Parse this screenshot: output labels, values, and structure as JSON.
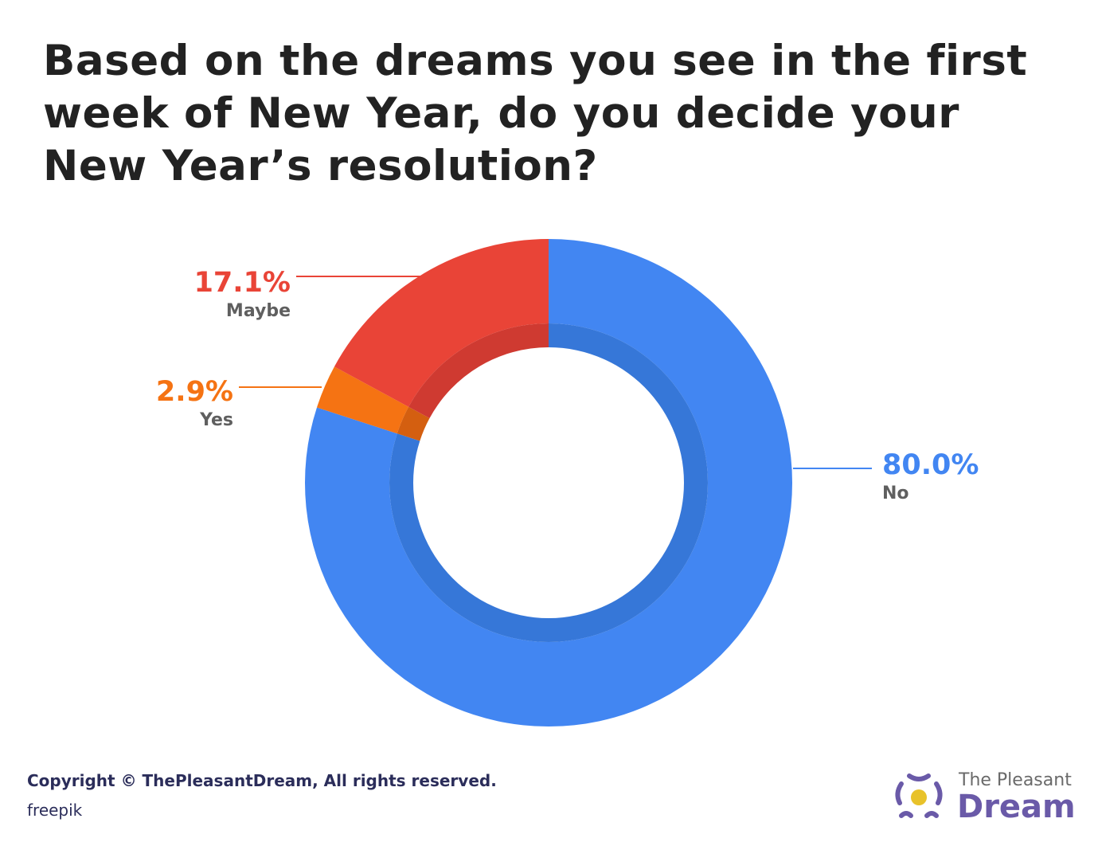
{
  "chart_data": {
    "type": "pie",
    "variant": "donut",
    "title": "Based on the dreams you see in the first week of New Year, do you decide your New Year’s resolution?",
    "categories": [
      "No",
      "Yes",
      "Maybe"
    ],
    "values": [
      80.0,
      2.9,
      17.1
    ],
    "labels": [
      "80.0%",
      "2.9%",
      "17.1%"
    ],
    "colors": [
      "#4286f2",
      "#f57313",
      "#e94437"
    ],
    "inner_colors": [
      "#3677d8",
      "#d45f10",
      "#cf3a31"
    ],
    "start": "top",
    "direction": "clockwise"
  },
  "footer": {
    "copyright": "Copyright © ThePleasantDream, All rights reserved.",
    "credit": "freepik"
  },
  "logo": {
    "line1": "The Pleasant",
    "line2": "Dream",
    "colors": {
      "ring": "#6a5aa8",
      "sun": "#e8c22a"
    }
  }
}
